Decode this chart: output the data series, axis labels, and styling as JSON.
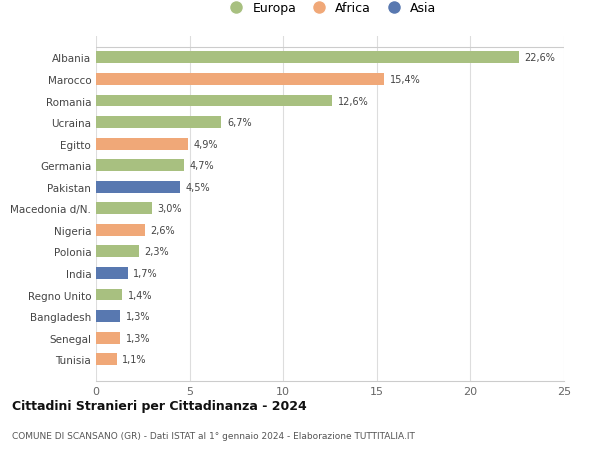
{
  "countries": [
    "Albania",
    "Marocco",
    "Romania",
    "Ucraina",
    "Egitto",
    "Germania",
    "Pakistan",
    "Macedonia d/N.",
    "Nigeria",
    "Polonia",
    "India",
    "Regno Unito",
    "Bangladesh",
    "Senegal",
    "Tunisia"
  ],
  "values": [
    22.6,
    15.4,
    12.6,
    6.7,
    4.9,
    4.7,
    4.5,
    3.0,
    2.6,
    2.3,
    1.7,
    1.4,
    1.3,
    1.3,
    1.1
  ],
  "labels": [
    "22,6%",
    "15,4%",
    "12,6%",
    "6,7%",
    "4,9%",
    "4,7%",
    "4,5%",
    "3,0%",
    "2,6%",
    "2,3%",
    "1,7%",
    "1,4%",
    "1,3%",
    "1,3%",
    "1,1%"
  ],
  "continents": [
    "Europa",
    "Africa",
    "Europa",
    "Europa",
    "Africa",
    "Europa",
    "Asia",
    "Europa",
    "Africa",
    "Europa",
    "Asia",
    "Europa",
    "Asia",
    "Africa",
    "Africa"
  ],
  "colors": {
    "Europa": "#a8c080",
    "Africa": "#f0a878",
    "Asia": "#5878b0"
  },
  "title_main": "Cittadini Stranieri per Cittadinanza - 2024",
  "title_sub": "COMUNE DI SCANSANO (GR) - Dati ISTAT al 1° gennaio 2024 - Elaborazione TUTTITALIA.IT",
  "xlim": [
    0,
    25
  ],
  "xticks": [
    0,
    5,
    10,
    15,
    20,
    25
  ],
  "background_color": "#ffffff",
  "bar_height": 0.55,
  "grid_color": "#dddddd"
}
